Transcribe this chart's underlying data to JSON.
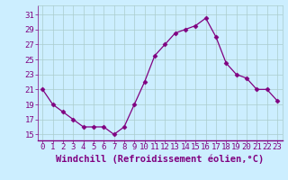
{
  "x": [
    0,
    1,
    2,
    3,
    4,
    5,
    6,
    7,
    8,
    9,
    10,
    11,
    12,
    13,
    14,
    15,
    16,
    17,
    18,
    19,
    20,
    21,
    22,
    23
  ],
  "y": [
    21,
    19,
    18,
    17,
    16,
    16,
    16,
    15,
    16,
    19,
    22,
    25.5,
    27,
    28.5,
    29,
    29.5,
    30.5,
    28,
    24.5,
    23,
    22.5,
    21,
    21,
    19.5
  ],
  "line_color": "#800080",
  "marker": "D",
  "marker_size": 2.5,
  "background_color": "#cceeff",
  "grid_color": "#aacccc",
  "xlabel": "Windchill (Refroidissement éolien,°C)",
  "xlabel_color": "#800080",
  "ylabel_ticks": [
    15,
    17,
    19,
    21,
    23,
    25,
    27,
    29,
    31
  ],
  "xlim": [
    -0.5,
    23.5
  ],
  "ylim": [
    14.2,
    32.2
  ],
  "xtick_labels": [
    "0",
    "1",
    "2",
    "3",
    "4",
    "5",
    "6",
    "7",
    "8",
    "9",
    "10",
    "11",
    "12",
    "13",
    "14",
    "15",
    "16",
    "17",
    "18",
    "19",
    "20",
    "21",
    "22",
    "23"
  ],
  "tick_color": "#800080",
  "fontsize_xlabel": 7.5,
  "fontsize_ticks": 6.5
}
